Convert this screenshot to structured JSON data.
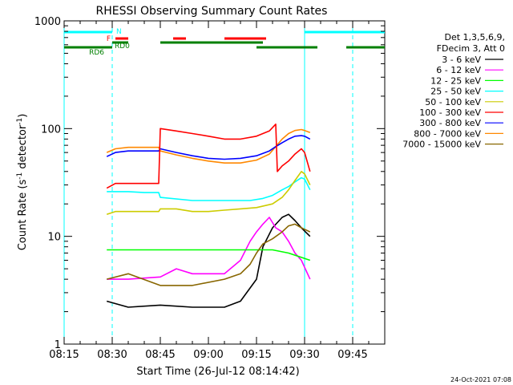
{
  "chart_data": {
    "type": "line",
    "title": "RHESSI Observing Summary Count Rates",
    "xlabel": "Start Time (26-Jul-12 08:14:42)",
    "ylabel": "Count Rate (s⁻¹ detector⁻¹)",
    "ylabel_parts": {
      "main": "Count Rate (s",
      "sup1": "-1",
      "mid": " detector",
      "sup2": "-1",
      "end": ")"
    },
    "x_unit": "minutes after 08:15",
    "xlim": [
      0,
      100
    ],
    "ylim": [
      1,
      1000
    ],
    "yscale": "log",
    "x_ticks": [
      {
        "x": 0,
        "label": "08:15"
      },
      {
        "x": 15,
        "label": "08:30"
      },
      {
        "x": 30,
        "label": "08:45"
      },
      {
        "x": 45,
        "label": "09:00"
      },
      {
        "x": 60,
        "label": "09:15"
      },
      {
        "x": 75,
        "label": "09:30"
      },
      {
        "x": 90,
        "label": "09:45"
      }
    ],
    "y_ticks": [
      {
        "y": 1,
        "label": "1"
      },
      {
        "y": 10,
        "label": "10"
      },
      {
        "y": 100,
        "label": "100"
      },
      {
        "y": 1000,
        "label": "1000"
      }
    ],
    "legend_header": [
      "Det 1,3,5,6,9,",
      "FDecim 3, Att 0"
    ],
    "legend_position": "right",
    "timestamp": "24-Oct-2021 07:08",
    "data_window": [
      13.3,
      76.7
    ],
    "series": [
      {
        "name": "3 - 6 keV",
        "color": "#000000",
        "points": [
          [
            13.3,
            2.5
          ],
          [
            20,
            2.2
          ],
          [
            30,
            2.3
          ],
          [
            40,
            2.2
          ],
          [
            50,
            2.2
          ],
          [
            55,
            2.5
          ],
          [
            60,
            4
          ],
          [
            62,
            8
          ],
          [
            65,
            12
          ],
          [
            68,
            15
          ],
          [
            70,
            16
          ],
          [
            72,
            14
          ],
          [
            74,
            12
          ],
          [
            76.7,
            10
          ]
        ]
      },
      {
        "name": "6 - 12 keV",
        "color": "#ff00ff",
        "points": [
          [
            13.3,
            4
          ],
          [
            20,
            4
          ],
          [
            30,
            4.2
          ],
          [
            35,
            5
          ],
          [
            40,
            4.5
          ],
          [
            50,
            4.5
          ],
          [
            55,
            6
          ],
          [
            58,
            9
          ],
          [
            60,
            11
          ],
          [
            62,
            13
          ],
          [
            64,
            15
          ],
          [
            66,
            12
          ],
          [
            68,
            11
          ],
          [
            70,
            9
          ],
          [
            72,
            7
          ],
          [
            74,
            6
          ],
          [
            76.7,
            4
          ]
        ]
      },
      {
        "name": "12 - 25 keV",
        "color": "#00ff00",
        "points": [
          [
            13.3,
            7.5
          ],
          [
            20,
            7.5
          ],
          [
            30,
            7.5
          ],
          [
            40,
            7.5
          ],
          [
            50,
            7.5
          ],
          [
            60,
            7.5
          ],
          [
            65,
            7.5
          ],
          [
            70,
            7
          ],
          [
            76.7,
            6
          ]
        ]
      },
      {
        "name": "25 - 50 keV",
        "color": "#00ffff",
        "points": [
          [
            13.3,
            26
          ],
          [
            20,
            26
          ],
          [
            25,
            25.5
          ],
          [
            29.5,
            25.5
          ],
          [
            30,
            23
          ],
          [
            40,
            21.5
          ],
          [
            50,
            21.5
          ],
          [
            58,
            21.5
          ],
          [
            62,
            22.5
          ],
          [
            65,
            24
          ],
          [
            68,
            27
          ],
          [
            70,
            29
          ],
          [
            72,
            32
          ],
          [
            74,
            35
          ],
          [
            75,
            34
          ],
          [
            76.7,
            27
          ]
        ]
      },
      {
        "name": "50 - 100 keV",
        "color": "#cccc00",
        "points": [
          [
            13.3,
            16
          ],
          [
            16,
            17
          ],
          [
            20,
            17
          ],
          [
            25,
            17
          ],
          [
            29.5,
            17
          ],
          [
            30,
            18
          ],
          [
            35,
            18
          ],
          [
            40,
            17
          ],
          [
            45,
            17
          ],
          [
            50,
            17.5
          ],
          [
            55,
            18
          ],
          [
            60,
            18.5
          ],
          [
            65,
            20
          ],
          [
            68,
            23
          ],
          [
            70,
            27
          ],
          [
            72,
            33
          ],
          [
            74,
            40
          ],
          [
            75,
            38
          ],
          [
            76.7,
            30
          ]
        ]
      },
      {
        "name": "100 - 300 keV",
        "color": "#ff0000",
        "points": [
          [
            13.3,
            28
          ],
          [
            16,
            31
          ],
          [
            20,
            31
          ],
          [
            25,
            31
          ],
          [
            29.5,
            31
          ],
          [
            30,
            100
          ],
          [
            35,
            95
          ],
          [
            40,
            90
          ],
          [
            45,
            85
          ],
          [
            50,
            80
          ],
          [
            55,
            80
          ],
          [
            60,
            85
          ],
          [
            64,
            95
          ],
          [
            66,
            110
          ],
          [
            66.5,
            40
          ],
          [
            68,
            45
          ],
          [
            70,
            50
          ],
          [
            72,
            58
          ],
          [
            74,
            65
          ],
          [
            75,
            60
          ],
          [
            76.7,
            40
          ]
        ]
      },
      {
        "name": "300 - 800 keV",
        "color": "#0000ff",
        "points": [
          [
            13.3,
            55
          ],
          [
            16,
            60
          ],
          [
            20,
            62
          ],
          [
            25,
            62
          ],
          [
            29.5,
            62
          ],
          [
            30,
            65
          ],
          [
            35,
            60
          ],
          [
            40,
            56
          ],
          [
            45,
            53
          ],
          [
            50,
            52
          ],
          [
            55,
            53
          ],
          [
            60,
            56
          ],
          [
            64,
            62
          ],
          [
            66,
            68
          ],
          [
            68,
            74
          ],
          [
            70,
            80
          ],
          [
            72,
            85
          ],
          [
            74,
            86
          ],
          [
            75,
            85
          ],
          [
            76.7,
            80
          ]
        ]
      },
      {
        "name": "800 - 7000 keV",
        "color": "#ff8800",
        "points": [
          [
            13.3,
            60
          ],
          [
            16,
            65
          ],
          [
            20,
            67
          ],
          [
            25,
            67
          ],
          [
            29.5,
            67
          ],
          [
            30,
            62
          ],
          [
            35,
            57
          ],
          [
            40,
            53
          ],
          [
            45,
            50
          ],
          [
            50,
            48
          ],
          [
            55,
            48
          ],
          [
            60,
            51
          ],
          [
            64,
            58
          ],
          [
            66,
            68
          ],
          [
            68,
            80
          ],
          [
            70,
            90
          ],
          [
            72,
            96
          ],
          [
            74,
            98
          ],
          [
            75,
            96
          ],
          [
            76.7,
            92
          ]
        ]
      },
      {
        "name": "7000 - 15000 keV",
        "color": "#886600",
        "points": [
          [
            13.3,
            4
          ],
          [
            20,
            4.5
          ],
          [
            30,
            3.5
          ],
          [
            40,
            3.5
          ],
          [
            50,
            4
          ],
          [
            55,
            4.5
          ],
          [
            58,
            5.5
          ],
          [
            60,
            7
          ],
          [
            62,
            8.5
          ],
          [
            65,
            9.5
          ],
          [
            68,
            11
          ],
          [
            70,
            12.5
          ],
          [
            72,
            13
          ],
          [
            74,
            12
          ],
          [
            76.7,
            11
          ]
        ]
      }
    ],
    "annotations": {
      "cyan_N": {
        "label": "N",
        "color": "#00ffff",
        "segments": [
          [
            0,
            15
          ],
          [
            75,
            100
          ]
        ]
      },
      "red_F": {
        "label": "F",
        "color": "#ff0000",
        "segments": [
          [
            16,
            20
          ],
          [
            34,
            38
          ],
          [
            50,
            63
          ]
        ]
      },
      "green_RD0": {
        "label": "RD0",
        "color": "#008000",
        "segments": [
          [
            15,
            20
          ],
          [
            30,
            62
          ]
        ]
      },
      "green_RD6": {
        "label": "RD6",
        "color": "#008000",
        "segments": [
          [
            0,
            15
          ],
          [
            60,
            79
          ],
          [
            88,
            100
          ]
        ]
      },
      "vertical_lines": [
        {
          "x": 0,
          "style": "solid",
          "color": "#00ffff"
        },
        {
          "x": 15,
          "style": "dashed",
          "color": "#00ffff"
        },
        {
          "x": 75,
          "style": "solid",
          "color": "#00ffff"
        },
        {
          "x": 90,
          "style": "dashed",
          "color": "#00ffff"
        }
      ]
    }
  }
}
